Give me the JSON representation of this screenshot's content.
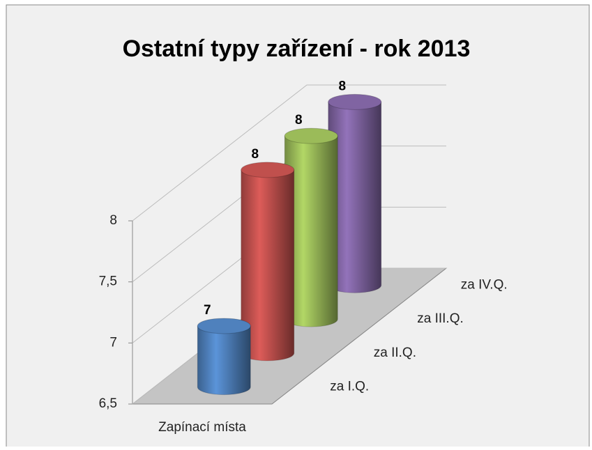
{
  "chart_data": {
    "type": "cylinder3d",
    "title": "Ostatní typy zařízení - rok 2013",
    "categories": [
      "Zapínací místa"
    ],
    "series": [
      {
        "name": "za I.Q.",
        "color": "#4f81bd",
        "values": [
          7
        ]
      },
      {
        "name": "za II.Q.",
        "color": "#c0504d",
        "values": [
          8
        ]
      },
      {
        "name": "za III.Q.",
        "color": "#9bbb59",
        "values": [
          8
        ]
      },
      {
        "name": "za IV.Q.",
        "color": "#8064a2",
        "values": [
          8
        ]
      }
    ],
    "ylim": [
      6.5,
      8
    ],
    "yticks": [
      {
        "value": 6.5,
        "label": "6,5"
      },
      7,
      {
        "value": 7.5,
        "label": "7,5"
      },
      8
    ],
    "grid": true
  }
}
